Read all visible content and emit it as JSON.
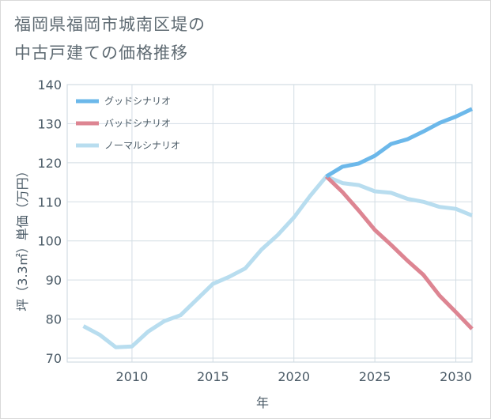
{
  "title_lines": [
    "福岡県福岡市城南区堤の",
    "中古戸建ての価格推移"
  ],
  "chart_data": {
    "type": "line",
    "xlabel": "年",
    "ylabel": "坪（3.3㎡）単価（万円）",
    "xlim": [
      2006,
      2031
    ],
    "ylim": [
      69,
      140
    ],
    "xticks": [
      2010,
      2015,
      2020,
      2025,
      2030
    ],
    "yticks": [
      70,
      80,
      90,
      100,
      110,
      120,
      130,
      140
    ],
    "grid": true,
    "legend_position": "top-left",
    "series": [
      {
        "name": "グッドシナリオ",
        "color": "#6cb8ea",
        "x": [
          2022,
          2023,
          2024,
          2025,
          2026,
          2027,
          2028,
          2029,
          2030,
          2031
        ],
        "y": [
          116.5,
          119.0,
          119.8,
          121.8,
          124.8,
          126.0,
          128.0,
          130.2,
          131.8,
          133.8
        ]
      },
      {
        "name": "バッドシナリオ",
        "color": "#dd8592",
        "x": [
          2022,
          2023,
          2024,
          2025,
          2026,
          2027,
          2028,
          2029,
          2030,
          2031
        ],
        "y": [
          116.5,
          112.5,
          107.8,
          102.8,
          99.0,
          95.0,
          91.3,
          86.0,
          81.8,
          77.5
        ]
      },
      {
        "name": "ノーマルシナリオ",
        "color": "#b8ddef",
        "x": [
          2007,
          2008,
          2009,
          2010,
          2011,
          2012,
          2013,
          2014,
          2015,
          2016,
          2017,
          2018,
          2019,
          2020,
          2021,
          2022,
          2023,
          2024,
          2025,
          2026,
          2027,
          2028,
          2029,
          2030,
          2031
        ],
        "y": [
          78.2,
          76.0,
          72.8,
          73.0,
          76.8,
          79.5,
          81.0,
          85.0,
          89.0,
          90.8,
          93.0,
          97.8,
          101.5,
          106.0,
          111.5,
          116.5,
          114.8,
          114.3,
          112.7,
          112.3,
          110.8,
          110.0,
          108.7,
          108.2,
          106.5
        ]
      }
    ]
  }
}
